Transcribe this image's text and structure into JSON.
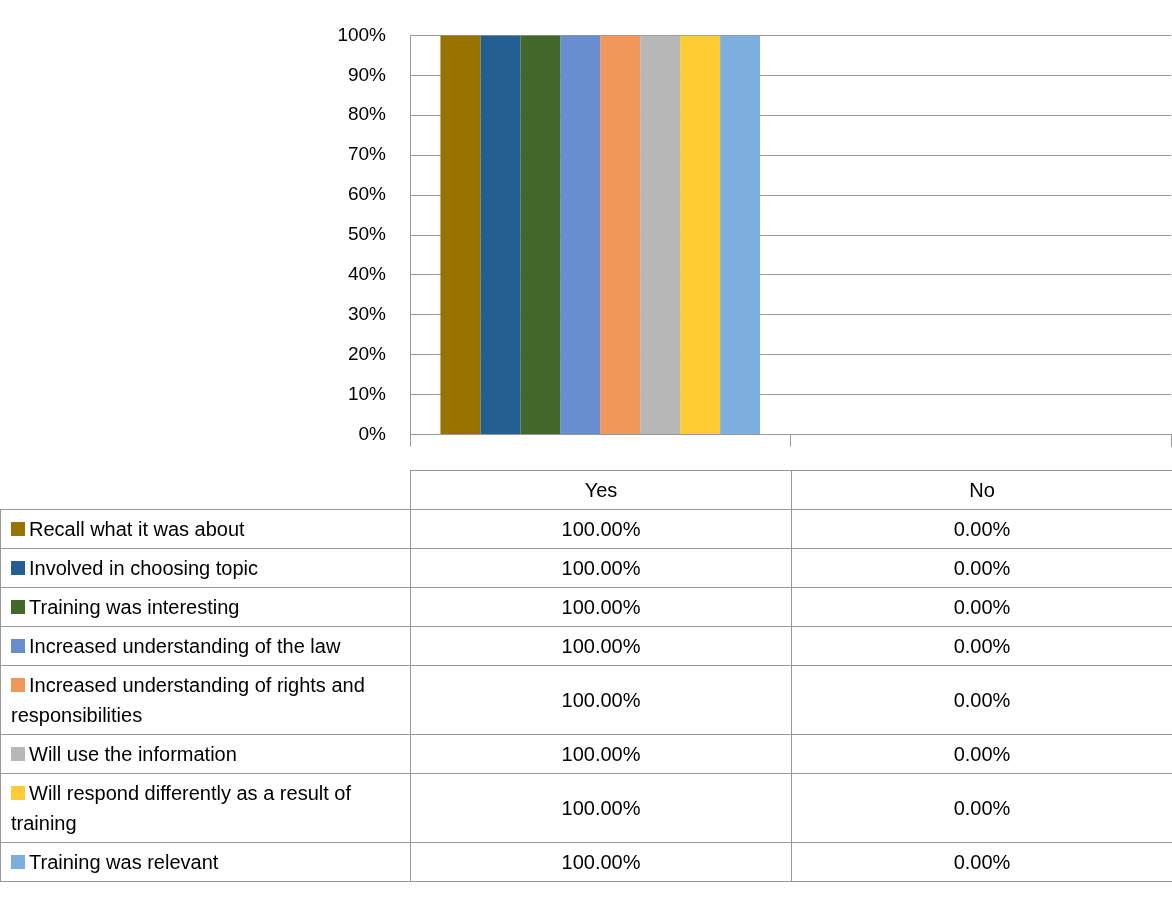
{
  "chart_data": {
    "type": "bar",
    "categories": [
      "Yes",
      "No"
    ],
    "series": [
      {
        "name": "Recall what it was about",
        "color": "#997300",
        "values": [
          100,
          0
        ],
        "value_labels": [
          "100.00%",
          "0.00%"
        ]
      },
      {
        "name": "Involved in choosing topic",
        "color": "#255e91",
        "values": [
          100,
          0
        ],
        "value_labels": [
          "100.00%",
          "0.00%"
        ]
      },
      {
        "name": "Training was interesting",
        "color": "#43682b",
        "values": [
          100,
          0
        ],
        "value_labels": [
          "100.00%",
          "0.00%"
        ]
      },
      {
        "name": "Increased understanding of the law",
        "color": "#698ed0",
        "values": [
          100,
          0
        ],
        "value_labels": [
          "100.00%",
          "0.00%"
        ]
      },
      {
        "name": "Increased understanding of rights and responsibilities",
        "color": "#f1975a",
        "values": [
          100,
          0
        ],
        "value_labels": [
          "100.00%",
          "0.00%"
        ]
      },
      {
        "name": "Will use the information",
        "color": "#b7b7b7",
        "values": [
          100,
          0
        ],
        "value_labels": [
          "100.00%",
          "0.00%"
        ]
      },
      {
        "name": "Will respond differently as a result of training",
        "color": "#ffcd33",
        "values": [
          100,
          0
        ],
        "value_labels": [
          "100.00%",
          "0.00%"
        ]
      },
      {
        "name": "Training was relevant",
        "color": "#7cafdd",
        "values": [
          100,
          0
        ],
        "value_labels": [
          "100.00%",
          "0.00%"
        ]
      }
    ],
    "ylim": [
      0,
      100
    ],
    "yticks": [
      {
        "value": 0,
        "label": "0%"
      },
      {
        "value": 10,
        "label": "10%"
      },
      {
        "value": 20,
        "label": "20%"
      },
      {
        "value": 30,
        "label": "30%"
      },
      {
        "value": 40,
        "label": "40%"
      },
      {
        "value": 50,
        "label": "50%"
      },
      {
        "value": 60,
        "label": "60%"
      },
      {
        "value": 70,
        "label": "70%"
      },
      {
        "value": 80,
        "label": "80%"
      },
      {
        "value": 90,
        "label": "90%"
      },
      {
        "value": 100,
        "label": "100%"
      }
    ],
    "grid": "y",
    "legend": "bottom"
  }
}
